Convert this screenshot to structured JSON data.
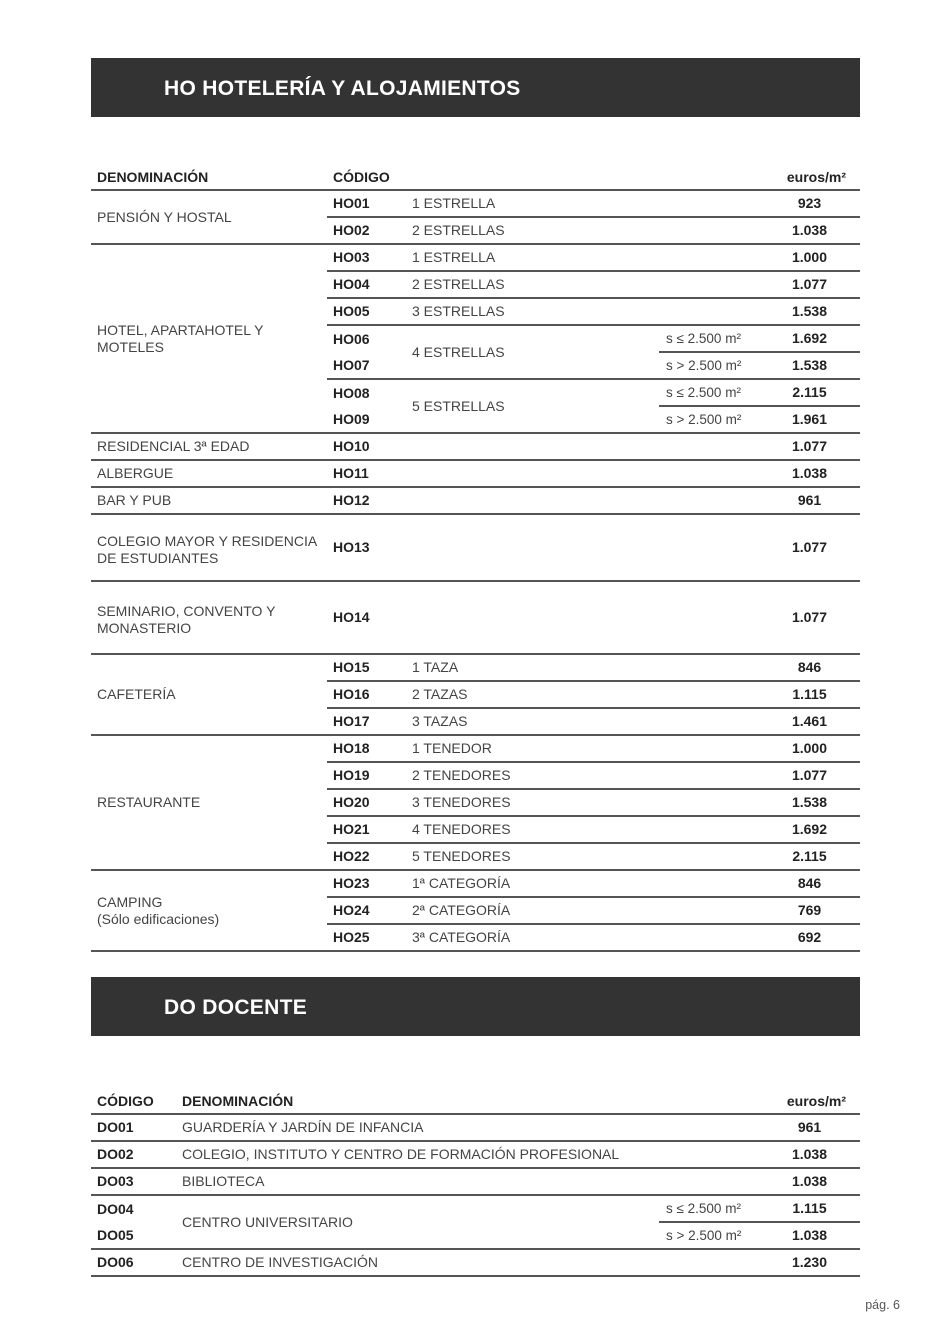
{
  "ho": {
    "title": "HO HOTELERÍA Y ALOJAMIENTOS",
    "headers": {
      "denominacion": "DENOMINACIÓN",
      "codigo": "CÓDIGO",
      "unit": "euros/m²"
    },
    "groups": [
      {
        "name": "PENSIÓN Y HOSTAL",
        "rows": [
          {
            "code": "HO01",
            "desc": "1 ESTRELLA",
            "value": "923"
          },
          {
            "code": "HO02",
            "desc": "2 ESTRELLAS",
            "value": "1.038"
          }
        ]
      },
      {
        "name": "HOTEL, APARTAHOTEL Y MOTELES",
        "rows": [
          {
            "code": "HO03",
            "desc": "1 ESTRELLA",
            "value": "1.000"
          },
          {
            "code": "HO04",
            "desc": "2 ESTRELLAS",
            "value": "1.077"
          },
          {
            "code": "HO05",
            "desc": "3 ESTRELLAS",
            "value": "1.538"
          },
          {
            "code": "HO06",
            "desc": "4 ESTRELLAS",
            "cond": "s ≤ 2.500 m²",
            "value": "1.692"
          },
          {
            "code": "HO07",
            "cond": "s > 2.500 m²",
            "value": "1.538"
          },
          {
            "code": "HO08",
            "desc": "5 ESTRELLAS",
            "cond": "s ≤ 2.500 m²",
            "value": "2.115"
          },
          {
            "code": "HO09",
            "cond": "s > 2.500 m²",
            "value": "1.961"
          }
        ]
      },
      {
        "name": "RESIDENCIAL 3ª EDAD",
        "rows": [
          {
            "code": "HO10",
            "desc": "",
            "value": "1.077"
          }
        ]
      },
      {
        "name": "ALBERGUE",
        "rows": [
          {
            "code": "HO11",
            "desc": "",
            "value": "1.038"
          }
        ]
      },
      {
        "name": "BAR Y PUB",
        "rows": [
          {
            "code": "HO12",
            "desc": "",
            "value": "961"
          }
        ]
      },
      {
        "name": "COLEGIO MAYOR Y RESIDENCIA DE ESTUDIANTES",
        "rows": [
          {
            "code": "HO13",
            "desc": "",
            "value": "1.077"
          }
        ]
      },
      {
        "name": "SEMINARIO, CONVENTO Y MONASTERIO",
        "rows": [
          {
            "code": "HO14",
            "desc": "",
            "value": "1.077"
          }
        ]
      },
      {
        "name": "CAFETERÍA",
        "rows": [
          {
            "code": "HO15",
            "desc": "1 TAZA",
            "value": "846"
          },
          {
            "code": "HO16",
            "desc": "2 TAZAS",
            "value": "1.115"
          },
          {
            "code": "HO17",
            "desc": "3 TAZAS",
            "value": "1.461"
          }
        ]
      },
      {
        "name": "RESTAURANTE",
        "rows": [
          {
            "code": "HO18",
            "desc": "1 TENEDOR",
            "value": "1.000"
          },
          {
            "code": "HO19",
            "desc": "2 TENEDORES",
            "value": "1.077"
          },
          {
            "code": "HO20",
            "desc": "3 TENEDORES",
            "value": "1.538"
          },
          {
            "code": "HO21",
            "desc": "4 TENEDORES",
            "value": "1.692"
          },
          {
            "code": "HO22",
            "desc": "5 TENEDORES",
            "value": "2.115"
          }
        ]
      },
      {
        "name": "CAMPING\n(Sólo edificaciones)",
        "rows": [
          {
            "code": "HO23",
            "desc": "1ª CATEGORÍA",
            "value": "846"
          },
          {
            "code": "HO24",
            "desc": "2ª CATEGORÍA",
            "value": "769"
          },
          {
            "code": "HO25",
            "desc": "3ª CATEGORÍA",
            "value": "692"
          }
        ]
      }
    ]
  },
  "do": {
    "title": "DO DOCENTE",
    "headers": {
      "codigo": "CÓDIGO",
      "denominacion": "DENOMINACIÓN",
      "unit": "euros/m²"
    },
    "rows": [
      {
        "code": "DO01",
        "desc": "GUARDERÍA Y JARDÍN DE INFANCIA",
        "value": "961"
      },
      {
        "code": "DO02",
        "desc": "COLEGIO, INSTITUTO Y CENTRO DE FORMACIÓN PROFESIONAL",
        "value": "1.038"
      },
      {
        "code": "DO03",
        "desc": "BIBLIOTECA",
        "value": "1.038"
      },
      {
        "code": "DO04",
        "desc": "CENTRO UNIVERSITARIO",
        "cond": "s ≤ 2.500 m²",
        "value": "1.115"
      },
      {
        "code": "DO05",
        "cond": "s > 2.500 m²",
        "value": "1.038"
      },
      {
        "code": "DO06",
        "desc": "CENTRO DE INVESTIGACIÓN",
        "value": "1.230"
      }
    ]
  },
  "footer": {
    "page": "pág. 6"
  }
}
